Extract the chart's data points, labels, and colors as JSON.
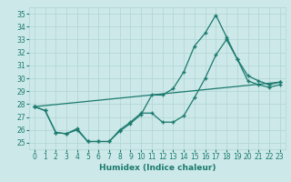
{
  "title": "",
  "xlabel": "Humidex (Indice chaleur)",
  "background_color": "#cce8e8",
  "line_color": "#1a7a6e",
  "xlim": [
    -0.5,
    23.5
  ],
  "ylim": [
    24.5,
    35.5
  ],
  "yticks": [
    25,
    26,
    27,
    28,
    29,
    30,
    31,
    32,
    33,
    34,
    35
  ],
  "xticks": [
    0,
    1,
    2,
    3,
    4,
    5,
    6,
    7,
    8,
    9,
    10,
    11,
    12,
    13,
    14,
    15,
    16,
    17,
    18,
    19,
    20,
    21,
    22,
    23
  ],
  "series1_x": [
    0,
    1,
    2,
    3,
    4,
    5,
    6,
    7,
    8,
    9,
    10,
    11,
    12,
    13,
    14,
    15,
    16,
    17,
    18,
    19,
    20,
    21,
    22,
    23
  ],
  "series1_y": [
    27.8,
    27.5,
    25.8,
    25.7,
    26.0,
    25.1,
    25.1,
    25.1,
    25.9,
    26.5,
    27.2,
    28.7,
    28.7,
    29.2,
    30.5,
    32.5,
    33.5,
    34.9,
    33.2,
    31.5,
    30.2,
    29.8,
    29.5,
    29.7
  ],
  "series2_x": [
    0,
    1,
    2,
    3,
    4,
    5,
    6,
    7,
    8,
    9,
    10,
    11,
    12,
    13,
    14,
    15,
    16,
    17,
    18,
    19,
    20,
    21,
    22,
    23
  ],
  "series2_y": [
    27.8,
    27.5,
    25.8,
    25.7,
    26.1,
    25.1,
    25.1,
    25.1,
    26.0,
    26.6,
    27.3,
    27.3,
    26.6,
    26.6,
    27.1,
    28.5,
    30.0,
    31.8,
    33.0,
    31.5,
    29.8,
    29.5,
    29.3,
    29.5
  ],
  "series3_x": [
    0,
    23
  ],
  "series3_y": [
    27.8,
    29.7
  ],
  "grid_color": "#b0d4d4",
  "spine_color": "#b0d4d4",
  "tick_color": "#1a7a6e",
  "label_fontsize": 5.5,
  "xlabel_fontsize": 6.5
}
